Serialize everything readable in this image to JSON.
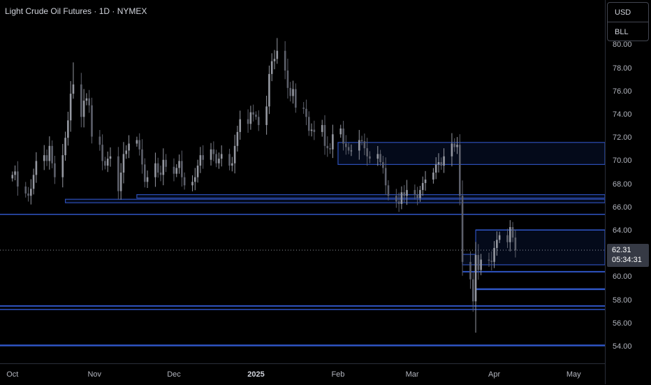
{
  "chart_data": {
    "type": "candlestick",
    "title": "Light Crude Oil Futures · 1D · NYMEX",
    "currency": "USD",
    "unit": "BLL",
    "last_price": "62.31",
    "countdown": "05:34:31",
    "y_ticks": [
      "80.00",
      "78.00",
      "76.00",
      "74.00",
      "72.00",
      "70.00",
      "68.00",
      "66.00",
      "64.00",
      "62.00",
      "60.00",
      "58.00",
      "56.00",
      "54.00"
    ],
    "ylim": [
      53,
      81.5
    ],
    "x_ticks": [
      "Oct",
      "Nov",
      "Dec",
      "2025",
      "Feb",
      "Mar",
      "Apr",
      "May"
    ],
    "x_tick_days": [
      0,
      31,
      61,
      92,
      123,
      151,
      182,
      212
    ],
    "start_date": "2024-09-19",
    "closes": [
      [
        0,
        68.8
      ],
      [
        1,
        69.1
      ],
      [
        2,
        67.8
      ],
      [
        5,
        67.2
      ],
      [
        6,
        67.0
      ],
      [
        7,
        67.6
      ],
      [
        8,
        68.8
      ],
      [
        9,
        70.0
      ],
      [
        12,
        70.5
      ],
      [
        13,
        70.0
      ],
      [
        14,
        71.3
      ],
      [
        15,
        69.8
      ],
      [
        16,
        68.6
      ],
      [
        19,
        70.5
      ],
      [
        20,
        72.0
      ],
      [
        21,
        73.5
      ],
      [
        22,
        75.8
      ],
      [
        23,
        76.6
      ],
      [
        26,
        73.8
      ],
      [
        27,
        75.2
      ],
      [
        28,
        75.4
      ],
      [
        29,
        74.8
      ],
      [
        30,
        72.1
      ],
      [
        33,
        71.4
      ],
      [
        34,
        70.0
      ],
      [
        35,
        69.6
      ],
      [
        36,
        70.2
      ],
      [
        37,
        70.4
      ],
      [
        40,
        67.4
      ],
      [
        41,
        69.0
      ],
      [
        42,
        70.6
      ],
      [
        43,
        70.9
      ],
      [
        44,
        71.5
      ],
      [
        47,
        71.8
      ],
      [
        48,
        71.0
      ],
      [
        49,
        69.7
      ],
      [
        50,
        68.2
      ],
      [
        51,
        68.6
      ],
      [
        54,
        69.8
      ],
      [
        55,
        69.0
      ],
      [
        56,
        68.8
      ],
      [
        57,
        70.1
      ],
      [
        58,
        69.5
      ],
      [
        61,
        68.9
      ],
      [
        62,
        69.4
      ],
      [
        63,
        70.0
      ],
      [
        64,
        68.6
      ],
      [
        65,
        67.9
      ],
      [
        68,
        68.2
      ],
      [
        69,
        68.6
      ],
      [
        70,
        69.6
      ],
      [
        71,
        70.5
      ],
      [
        72,
        70.1
      ],
      [
        75,
        71.0
      ],
      [
        76,
        70.6
      ],
      [
        77,
        69.8
      ],
      [
        78,
        70.2
      ],
      [
        79,
        70.6
      ],
      [
        82,
        69.6
      ],
      [
        83,
        69.8
      ],
      [
        84,
        71.3
      ],
      [
        85,
        72.5
      ],
      [
        86,
        73.6
      ],
      [
        89,
        73.2
      ],
      [
        90,
        74.2
      ],
      [
        91,
        74.0
      ],
      [
        92,
        73.8
      ],
      [
        93,
        73.1
      ],
      [
        96,
        74.7
      ],
      [
        97,
        77.5
      ],
      [
        98,
        78.6
      ],
      [
        99,
        78.8
      ],
      [
        100,
        79.5
      ],
      [
        103,
        77.8
      ],
      [
        104,
        76.3
      ],
      [
        105,
        75.6
      ],
      [
        106,
        76.2
      ],
      [
        107,
        74.6
      ],
      [
        110,
        74.5
      ],
      [
        111,
        73.8
      ],
      [
        112,
        72.6
      ],
      [
        113,
        72.7
      ],
      [
        114,
        72.5
      ],
      [
        117,
        73.1
      ],
      [
        118,
        71.3
      ],
      [
        119,
        71.1
      ],
      [
        120,
        71.0
      ],
      [
        121,
        72.3
      ],
      [
        124,
        72.8
      ],
      [
        125,
        71.5
      ],
      [
        126,
        71.2
      ],
      [
        127,
        70.9
      ],
      [
        128,
        70.9
      ],
      [
        131,
        71.8
      ],
      [
        132,
        71.7
      ],
      [
        133,
        71.1
      ],
      [
        134,
        70.4
      ],
      [
        135,
        70.2
      ],
      [
        138,
        70.6
      ],
      [
        139,
        69.9
      ],
      [
        140,
        69.4
      ],
      [
        141,
        67.9
      ],
      [
        142,
        67.0
      ],
      [
        145,
        66.5
      ],
      [
        146,
        66.3
      ],
      [
        147,
        67.3
      ],
      [
        148,
        67.0
      ],
      [
        149,
        67.5
      ],
      [
        152,
        67.1
      ],
      [
        153,
        66.8
      ],
      [
        154,
        67.5
      ],
      [
        155,
        68.1
      ],
      [
        156,
        68.4
      ],
      [
        159,
        69.0
      ],
      [
        160,
        69.7
      ],
      [
        161,
        69.9
      ],
      [
        162,
        69.6
      ],
      [
        163,
        70.4
      ],
      [
        166,
        71.5
      ],
      [
        167,
        71.2
      ],
      [
        168,
        71.4
      ],
      [
        169,
        67.0
      ],
      [
        170,
        61.3
      ],
      [
        173,
        59.8
      ],
      [
        174,
        57.9
      ],
      [
        175,
        61.9
      ],
      [
        176,
        60.6
      ],
      [
        177,
        61.5
      ],
      [
        180,
        61.4
      ],
      [
        181,
        61.3
      ],
      [
        182,
        62.5
      ],
      [
        183,
        63.2
      ],
      [
        184,
        63.6
      ],
      [
        187,
        63.0
      ],
      [
        188,
        64.3
      ],
      [
        189,
        63.4
      ],
      [
        190,
        62.3
      ]
    ],
    "zones": [
      {
        "y1": 71.6,
        "y2": 69.7,
        "from": 123,
        "to": 999
      },
      {
        "y1": 67.1,
        "y2": 66.8,
        "from": 47,
        "to": 999
      },
      {
        "y1": 66.7,
        "y2": 66.4,
        "from": 20,
        "to": 999
      },
      {
        "y1": 64.05,
        "y2": 61.05,
        "from": 175,
        "to": 999
      },
      {
        "y1": 61.95,
        "y2": 61.05,
        "from": 170,
        "to": 175
      }
    ],
    "levels": [
      {
        "y": 65.4,
        "from": -10,
        "to": 999,
        "width": 1.5
      },
      {
        "y": 64.05,
        "from": 175,
        "to": 999,
        "width": 1.5
      },
      {
        "y": 60.45,
        "from": 170,
        "to": 999,
        "width": 2
      },
      {
        "y": 58.95,
        "from": 175,
        "to": 999,
        "width": 2.5
      },
      {
        "y": 57.5,
        "from": -10,
        "to": 999,
        "width": 2
      },
      {
        "y": 57.2,
        "from": -10,
        "to": 999,
        "width": 1.5
      },
      {
        "y": 54.1,
        "from": -10,
        "to": 999,
        "width": 2.5
      }
    ]
  }
}
